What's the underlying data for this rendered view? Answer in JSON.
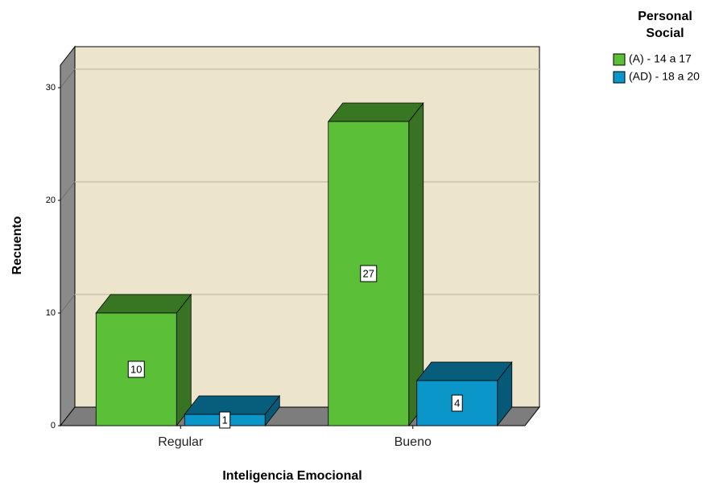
{
  "chart_data": {
    "type": "bar3d",
    "x_label": "Inteligencia Emocional",
    "y_label": "Recuento",
    "legend_title": [
      "Personal",
      "Social"
    ],
    "categories": [
      "Regular",
      "Bueno"
    ],
    "series": [
      {
        "name": "(A) - 14 a 17",
        "color": "#5cbf38",
        "values": [
          10,
          27
        ]
      },
      {
        "name": "(AD) - 18 a 20",
        "color": "#0a96c8",
        "values": [
          1,
          4
        ]
      }
    ],
    "ylim": [
      0,
      32
    ],
    "yticks": [
      0,
      10,
      20,
      30
    ],
    "grid": true,
    "legend": "top-right"
  }
}
